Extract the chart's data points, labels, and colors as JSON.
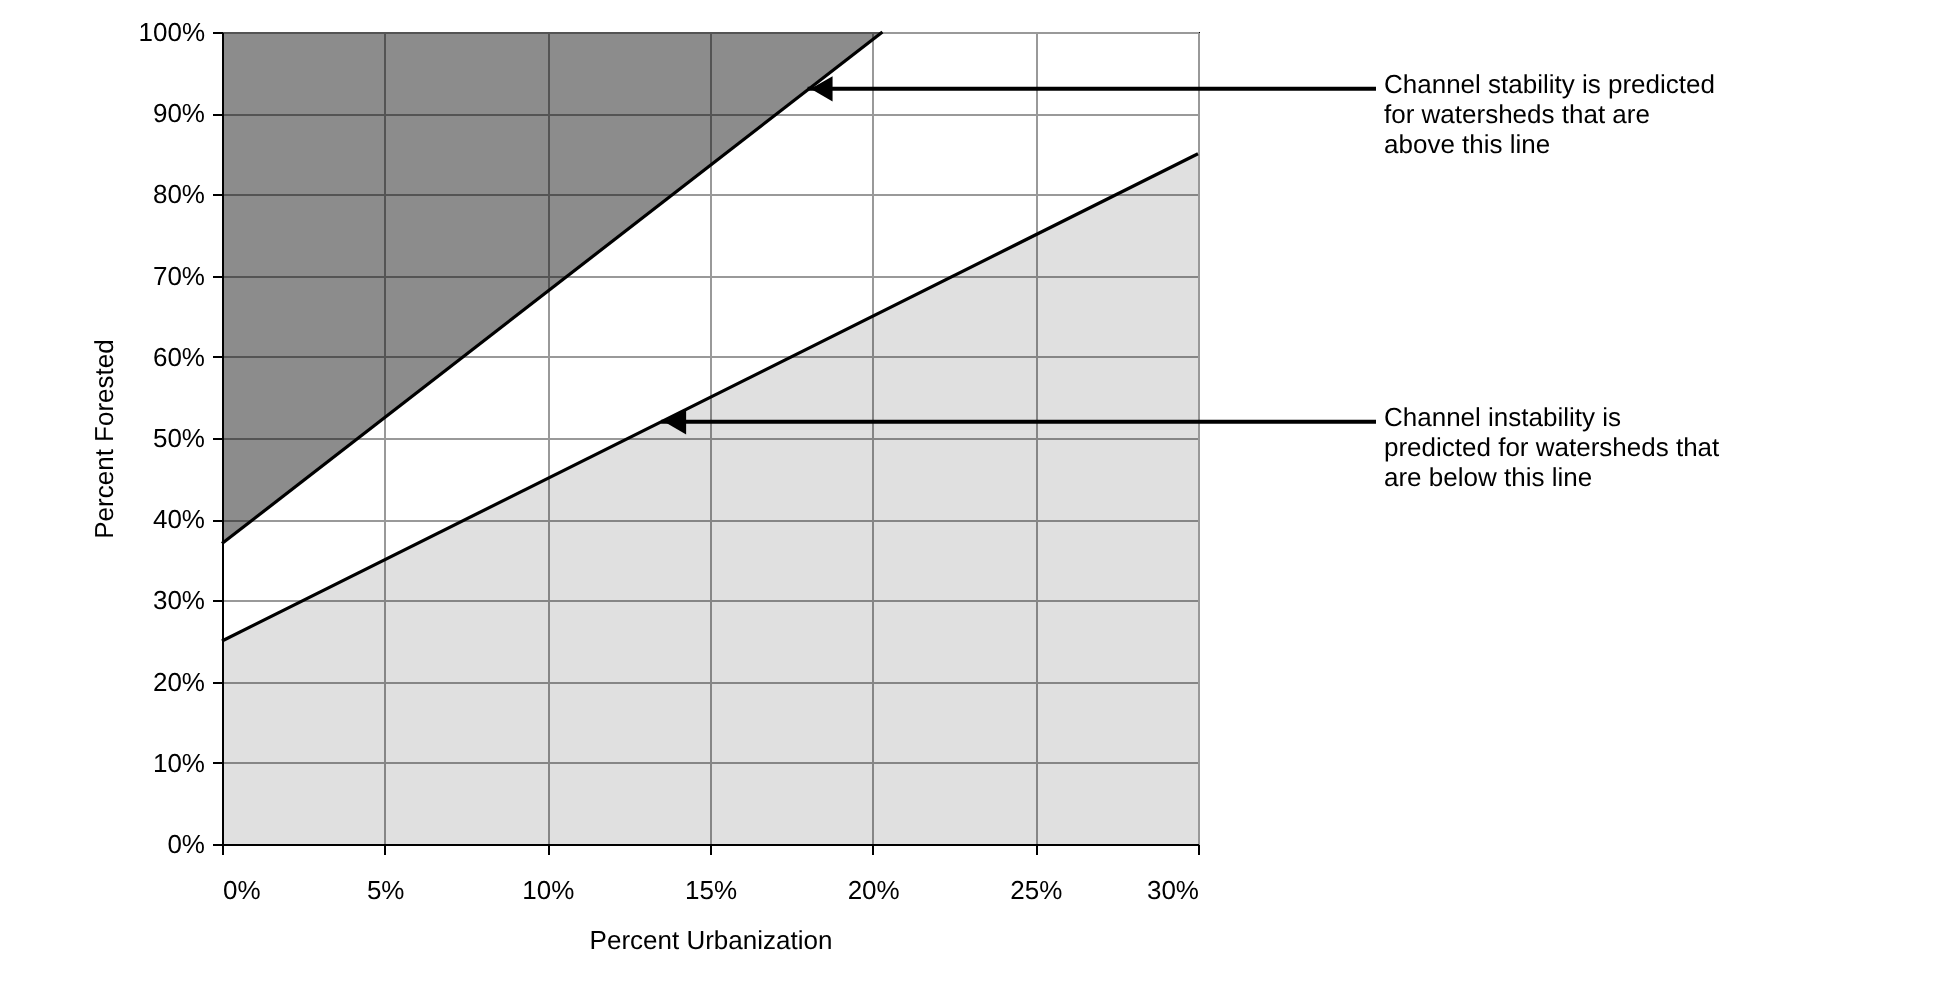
{
  "chart_data": {
    "type": "line",
    "xlabel": "Percent Urbanization",
    "ylabel": "Percent Forested",
    "xlim": [
      0,
      30
    ],
    "ylim": [
      0,
      100
    ],
    "xticks": [
      {
        "value": 0,
        "label": "0%"
      },
      {
        "value": 5,
        "label": "5%"
      },
      {
        "value": 10,
        "label": "10%"
      },
      {
        "value": 15,
        "label": "15%"
      },
      {
        "value": 20,
        "label": "20%"
      },
      {
        "value": 25,
        "label": "25%"
      },
      {
        "value": 30,
        "label": "30%"
      }
    ],
    "yticks": [
      {
        "value": 0,
        "label": "0%"
      },
      {
        "value": 10,
        "label": "10%"
      },
      {
        "value": 20,
        "label": "20%"
      },
      {
        "value": 30,
        "label": "30%"
      },
      {
        "value": 40,
        "label": "40%"
      },
      {
        "value": 50,
        "label": "50%"
      },
      {
        "value": 60,
        "label": "60%"
      },
      {
        "value": 70,
        "label": "70%"
      },
      {
        "value": 80,
        "label": "80%"
      },
      {
        "value": 90,
        "label": "90%"
      },
      {
        "value": 100,
        "label": "100%"
      }
    ],
    "grid": true,
    "series": [
      {
        "color": "#000000",
        "x": [
          0,
          20.3
        ],
        "values": [
          37,
          100
        ],
        "lower": [
          37,
          100
        ],
        "upper": [
          100,
          100
        ]
      },
      {
        "type": "area",
        "color": "#000000",
        "x": [
          0,
          30
        ],
        "values": [
          25,
          85
        ]
      }
    ],
    "annotations": [
      {
        "text": "Channel stability is predicted\nfor watersheds that are\nabove this line",
        "x": 18,
        "y": 93
      },
      {
        "text": "Channel instability is\npredicted for watersheds that\nare below this line",
        "x": 13.5,
        "y": 52
      }
    ]
  }
}
